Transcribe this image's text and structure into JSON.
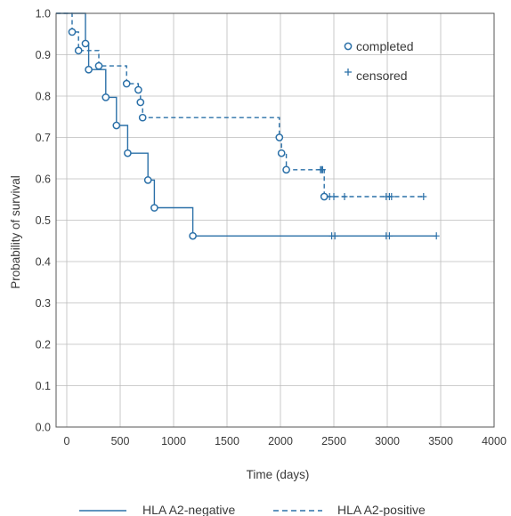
{
  "chart_data": {
    "type": "line",
    "subtype": "kaplan-meier",
    "xlabel": "Time (days)",
    "ylabel": "Probability of survival",
    "xlim": [
      -100,
      4000
    ],
    "ylim": [
      0.0,
      1.0
    ],
    "xticks": [
      0,
      500,
      1000,
      1500,
      2000,
      2500,
      3000,
      3500,
      4000
    ],
    "yticks": [
      0.0,
      0.1,
      0.2,
      0.3,
      0.4,
      0.5,
      0.6,
      0.7,
      0.8,
      0.9,
      1.0
    ],
    "xtick_labels": [
      "0",
      "500",
      "1000",
      "1500",
      "2000",
      "2500",
      "3000",
      "3500",
      "4000"
    ],
    "ytick_labels": [
      "0.0",
      "0.1",
      "0.2",
      "0.3",
      "0.4",
      "0.5",
      "0.6",
      "0.7",
      "0.8",
      "0.9",
      "1.0"
    ],
    "grid": true,
    "legend_top_right": {
      "completed_label": "completed",
      "censored_label": "censored",
      "completed_marker": "open circle",
      "censored_marker": "plus"
    },
    "legend_bottom": {
      "entries": [
        "HLA A2-negative",
        "HLA A2-positive"
      ]
    },
    "colors": {
      "series": "#2b70a8",
      "grid": "#bdbdbd",
      "axis": "#555555",
      "text": "#3a3a3a"
    },
    "series": [
      {
        "name": "HLA A2-negative",
        "line_style": "solid",
        "steps": [
          [
            -100,
            1.0
          ],
          [
            175,
            0.927
          ],
          [
            205,
            0.864
          ],
          [
            365,
            0.797
          ],
          [
            465,
            0.729
          ],
          [
            570,
            0.662
          ],
          [
            760,
            0.597
          ],
          [
            820,
            0.53
          ],
          [
            1180,
            0.462
          ],
          [
            3460,
            0.462
          ]
        ],
        "completed": [
          [
            175,
            0.927
          ],
          [
            205,
            0.864
          ],
          [
            365,
            0.797
          ],
          [
            465,
            0.729
          ],
          [
            570,
            0.662
          ],
          [
            760,
            0.597
          ],
          [
            820,
            0.53
          ],
          [
            1180,
            0.462
          ]
        ],
        "censored": [
          [
            2480,
            0.462
          ],
          [
            2510,
            0.462
          ],
          [
            2990,
            0.462
          ],
          [
            3020,
            0.462
          ],
          [
            3460,
            0.462
          ]
        ]
      },
      {
        "name": "HLA A2-positive",
        "line_style": "dashed",
        "steps": [
          [
            -100,
            1.0
          ],
          [
            50,
            0.955
          ],
          [
            110,
            0.91
          ],
          [
            300,
            0.873
          ],
          [
            560,
            0.83
          ],
          [
            670,
            0.815
          ],
          [
            690,
            0.785
          ],
          [
            710,
            0.748
          ],
          [
            1990,
            0.7
          ],
          [
            2010,
            0.662
          ],
          [
            2055,
            0.622
          ],
          [
            2410,
            0.557
          ],
          [
            3340,
            0.557
          ]
        ],
        "completed": [
          [
            50,
            0.955
          ],
          [
            110,
            0.91
          ],
          [
            300,
            0.873
          ],
          [
            560,
            0.83
          ],
          [
            670,
            0.815
          ],
          [
            690,
            0.785
          ],
          [
            710,
            0.748
          ],
          [
            1990,
            0.7
          ],
          [
            2010,
            0.662
          ],
          [
            2055,
            0.622
          ],
          [
            2410,
            0.557
          ]
        ],
        "censored": [
          [
            2375,
            0.622
          ],
          [
            2385,
            0.622
          ],
          [
            2395,
            0.622
          ],
          [
            2460,
            0.557
          ],
          [
            2500,
            0.557
          ],
          [
            2600,
            0.557
          ],
          [
            2990,
            0.557
          ],
          [
            3020,
            0.557
          ],
          [
            3040,
            0.557
          ],
          [
            3340,
            0.557
          ]
        ]
      }
    ]
  }
}
